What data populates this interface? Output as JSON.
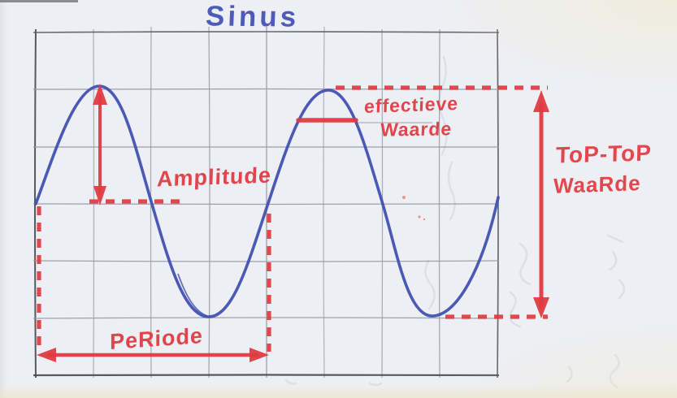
{
  "title": "Sinus",
  "labels": {
    "amplitude": "Amplitude",
    "effective_value_line1": "effectieve",
    "effective_value_line2": "Waarde",
    "peak_to_peak_line1": "ToP-ToP",
    "peak_to_peak_line2": "WaaRde",
    "period": "PeRiode"
  },
  "colors": {
    "ink_blue": "#4150b2",
    "marker_red": "#e0393f",
    "grid_pencil": "#989da8",
    "grid_border": "#4c5058",
    "paper": "#edeff4"
  },
  "chart_data": {
    "type": "line",
    "title": "Sinus",
    "description": "Hand-drawn sine wave, two periods, on pencil grid paper",
    "grid": {
      "columns": 8,
      "rows": 6
    },
    "wave": {
      "periods_shown": 2,
      "period_grid_cells": 4,
      "amplitude_grid_cells": 2,
      "midline_row": 3,
      "peak_row": 1,
      "trough_row": 5,
      "effective_value_fraction_of_amplitude": 0.707
    },
    "annotations": [
      "Amplitude (midline to peak, vertical double arrow at first peak)",
      "effectieve Waarde (short horizontal level line through second peak hump)",
      "ToP-ToP WaaRde (peak-to-peak vertical double arrow at right, between dashed peak and trough levels)",
      "PeRiode (horizontal double arrow under first full period, bounded by dashed verticals)"
    ]
  }
}
